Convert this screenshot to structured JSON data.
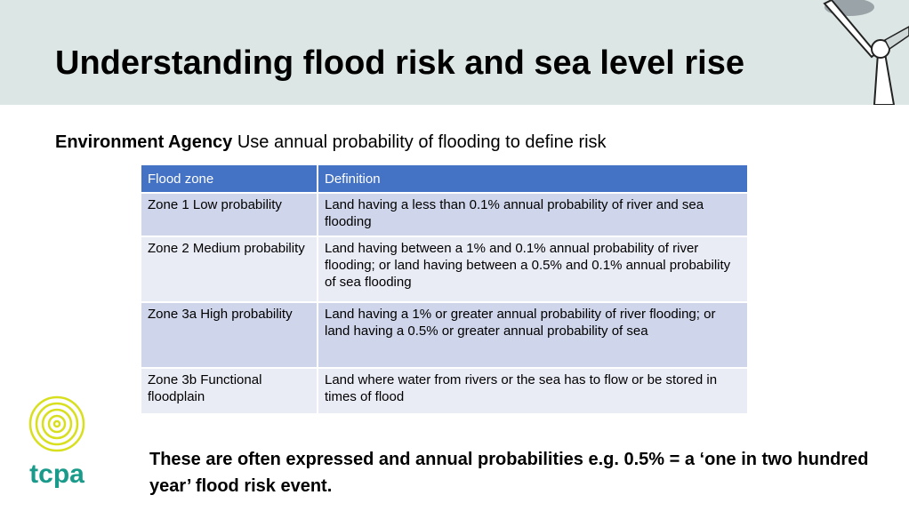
{
  "header": {
    "title": "Understanding flood risk and sea level rise"
  },
  "subtitle": {
    "bold": "Environment Agency",
    "text": "Use annual probability of flooding to define risk"
  },
  "table": {
    "header": [
      "Flood zone",
      "Definition"
    ],
    "rows": [
      [
        "Zone 1 Low probability",
        "Land having a less than 0.1% annual probability of river and sea flooding"
      ],
      [
        "Zone 2 Medium probability",
        "Land having between a 1% and 0.1% annual probability of river flooding; or land having between a 0.5% and 0.1% annual probability of sea flooding"
      ],
      [
        "Zone 3a High probability",
        "Land having a 1% or greater annual probability of river flooding; or land having a 0.5% or greater annual probability of sea"
      ],
      [
        "Zone 3b Functional floodplain",
        "Land where water from rivers or the sea has to flow or be stored in times of flood"
      ]
    ]
  },
  "note": "These are often expressed and annual probabilities e.g. 0.5% = a ‘one in two hundred year’ flood risk event.",
  "logo": "tcpa"
}
